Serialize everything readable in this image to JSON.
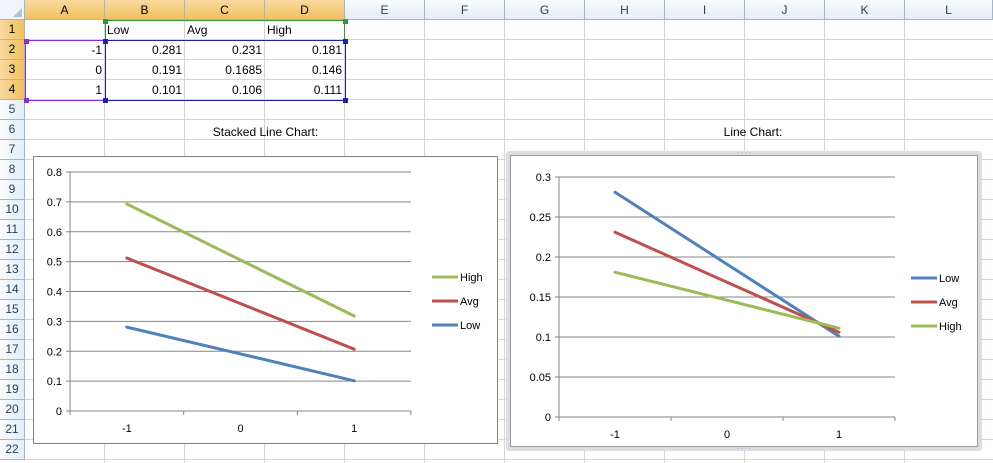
{
  "columns": [
    "A",
    "B",
    "C",
    "D",
    "E",
    "F",
    "G",
    "H",
    "I",
    "J",
    "K",
    "L"
  ],
  "rows": [
    "1",
    "2",
    "3",
    "4",
    "5",
    "6",
    "7",
    "8",
    "9",
    "10",
    "11",
    "12",
    "13",
    "14",
    "15",
    "16",
    "17",
    "18",
    "19",
    "20",
    "21",
    "22"
  ],
  "table": {
    "headers": [
      "",
      "Low",
      "Avg",
      "High"
    ],
    "rows": [
      [
        "-1",
        "0.281",
        "0.231",
        "0.181"
      ],
      [
        "0",
        "0.191",
        "0.1685",
        "0.146"
      ],
      [
        "1",
        "0.101",
        "0.106",
        "0.111"
      ]
    ]
  },
  "charts": {
    "stacked_title": "Stacked Line Chart:",
    "line_title": "Line Chart:"
  },
  "colors": {
    "low": "#4f81bd",
    "avg": "#c0504d",
    "high": "#9bbb59",
    "gridline": "#868686",
    "selection_blue": "#1f1fa8",
    "selection_purple": "#8a2be2",
    "selection_green": "#2e9a36",
    "header_selected": "#f1c15f"
  },
  "chart_data": [
    {
      "type": "line",
      "stacked": true,
      "title": "Stacked Line Chart:",
      "categories": [
        "-1",
        "0",
        "1"
      ],
      "series": [
        {
          "name": "Low",
          "values": [
            0.281,
            0.191,
            0.101
          ]
        },
        {
          "name": "Avg",
          "values": [
            0.231,
            0.1685,
            0.106
          ]
        },
        {
          "name": "High",
          "values": [
            0.181,
            0.146,
            0.111
          ]
        }
      ],
      "ylim": [
        0,
        0.8
      ],
      "yticks": [
        "0",
        "0.1",
        "0.2",
        "0.3",
        "0.4",
        "0.5",
        "0.6",
        "0.7",
        "0.8"
      ],
      "legend_order": [
        "High",
        "Avg",
        "Low"
      ],
      "legend_position": "right",
      "grid": true
    },
    {
      "type": "line",
      "stacked": false,
      "title": "Line Chart:",
      "categories": [
        "-1",
        "0",
        "1"
      ],
      "series": [
        {
          "name": "Low",
          "values": [
            0.281,
            0.191,
            0.101
          ]
        },
        {
          "name": "Avg",
          "values": [
            0.231,
            0.1685,
            0.106
          ]
        },
        {
          "name": "High",
          "values": [
            0.181,
            0.146,
            0.111
          ]
        }
      ],
      "ylim": [
        0,
        0.3
      ],
      "yticks": [
        "0",
        "0.05",
        "0.1",
        "0.15",
        "0.2",
        "0.25",
        "0.3"
      ],
      "legend_order": [
        "Low",
        "Avg",
        "High"
      ],
      "legend_position": "right",
      "grid": true
    }
  ]
}
